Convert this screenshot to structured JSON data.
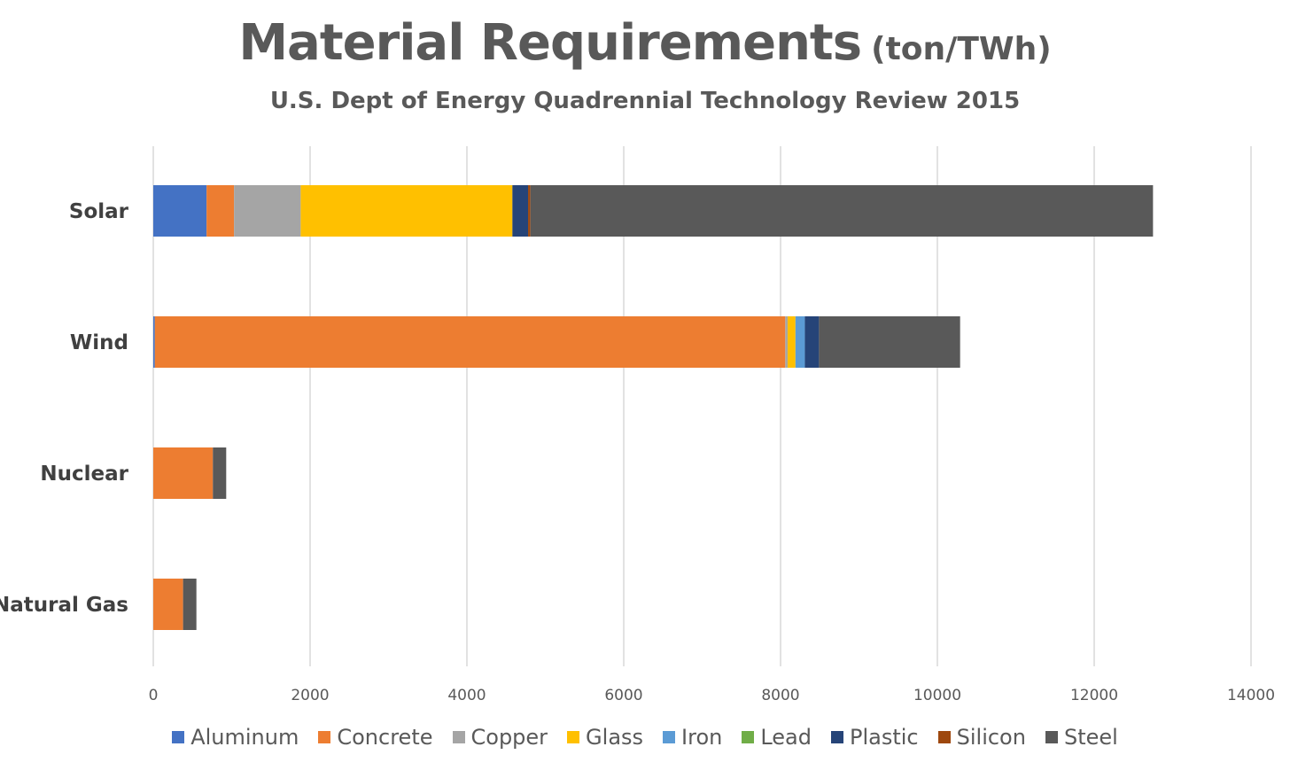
{
  "chart_data": {
    "type": "bar",
    "orientation": "horizontal",
    "stacked": true,
    "title": "Material Requirements",
    "title_unit": "(ton/TWh)",
    "subtitle": "U.S. Dept of Energy Quadrennial Technology Review 2015",
    "categories": [
      "Solar",
      "Wind",
      "Nuclear",
      "Natural Gas"
    ],
    "xlim": [
      0,
      14000
    ],
    "x_ticks": [
      "0",
      "2000",
      "4000",
      "6000",
      "8000",
      "10000",
      "12000",
      "14000"
    ],
    "grid": "vertical",
    "legend_position": "bottom",
    "series": [
      {
        "name": "Aluminum",
        "color": "#4472C4",
        "values": [
          680,
          20,
          0,
          0
        ]
      },
      {
        "name": "Concrete",
        "color": "#ED7D31",
        "values": [
          350,
          8040,
          760,
          380
        ]
      },
      {
        "name": "Copper",
        "color": "#A5A5A5",
        "values": [
          850,
          30,
          0,
          0
        ]
      },
      {
        "name": "Glass",
        "color": "#FFC000",
        "values": [
          2700,
          100,
          0,
          0
        ]
      },
      {
        "name": "Iron",
        "color": "#5B9BD5",
        "values": [
          0,
          120,
          0,
          0
        ]
      },
      {
        "name": "Lead",
        "color": "#70AD47",
        "values": [
          0,
          0,
          0,
          0
        ]
      },
      {
        "name": "Plastic",
        "color": "#264478",
        "values": [
          200,
          180,
          0,
          0
        ]
      },
      {
        "name": "Silicon",
        "color": "#9E480E",
        "values": [
          30,
          0,
          0,
          0
        ]
      },
      {
        "name": "Steel",
        "color": "#595959",
        "values": [
          7940,
          1800,
          170,
          170
        ]
      }
    ]
  }
}
